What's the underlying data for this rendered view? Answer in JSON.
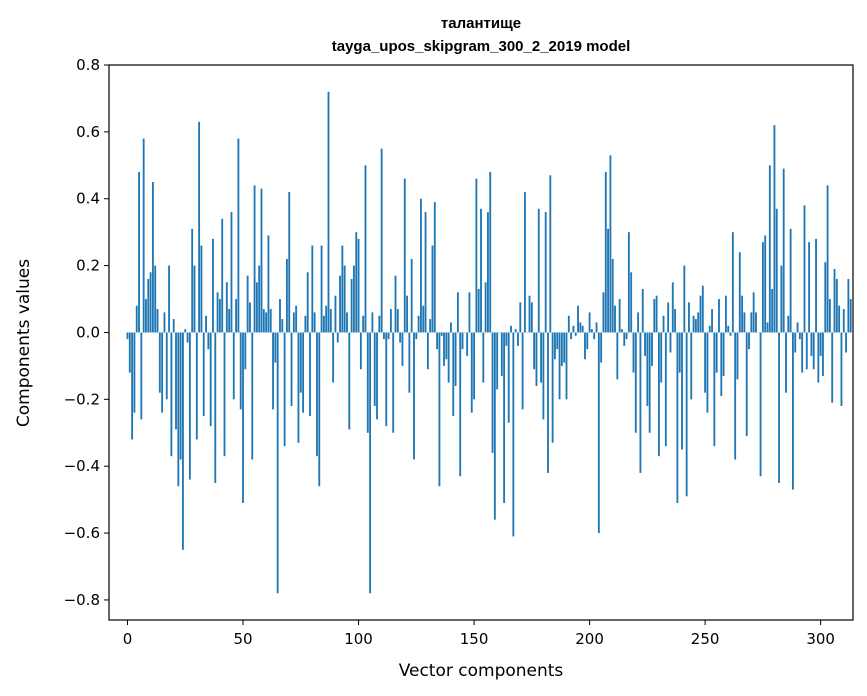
{
  "chart_data": {
    "type": "bar",
    "title": "талантище",
    "subtitle": "tayga_upos_skipgram_300_2_2019 model",
    "xlabel": "Vector components",
    "ylabel": "Components values",
    "xlim": [
      -8,
      314
    ],
    "ylim": [
      -0.86,
      0.8
    ],
    "xticks": [
      0,
      50,
      100,
      150,
      200,
      250,
      300
    ],
    "yticks": [
      -0.8,
      -0.6,
      -0.4,
      -0.2,
      0.0,
      0.2,
      0.4,
      0.6,
      0.8
    ],
    "ytick_labels": [
      "−0.8",
      "−0.6",
      "−0.4",
      "−0.2",
      "0.0",
      "0.2",
      "0.4",
      "0.6",
      "0.8"
    ],
    "bar_color": "#1f77b4",
    "grid": false,
    "values": [
      -0.02,
      -0.12,
      -0.32,
      -0.24,
      0.08,
      0.48,
      -0.26,
      0.58,
      0.1,
      0.16,
      0.18,
      0.45,
      0.2,
      0.07,
      -0.18,
      -0.24,
      0.06,
      -0.2,
      0.2,
      -0.37,
      0.04,
      -0.29,
      -0.46,
      -0.38,
      -0.65,
      0.01,
      -0.03,
      -0.44,
      0.31,
      0.2,
      -0.32,
      0.63,
      0.26,
      -0.25,
      0.05,
      -0.05,
      -0.28,
      0.28,
      -0.45,
      0.12,
      0.1,
      0.34,
      -0.37,
      0.15,
      0.07,
      0.36,
      -0.2,
      0.1,
      0.58,
      -0.23,
      -0.51,
      -0.11,
      0.17,
      0.09,
      -0.38,
      0.44,
      0.15,
      0.2,
      0.43,
      0.07,
      0.06,
      0.29,
      0.07,
      -0.23,
      -0.09,
      -0.78,
      0.1,
      0.04,
      -0.34,
      0.22,
      0.42,
      -0.22,
      0.06,
      0.08,
      -0.33,
      -0.18,
      -0.24,
      0.05,
      0.18,
      -0.25,
      0.26,
      0.06,
      -0.37,
      -0.46,
      0.26,
      0.05,
      0.08,
      0.72,
      0.07,
      -0.15,
      0.11,
      -0.03,
      0.17,
      0.26,
      0.2,
      0.06,
      -0.29,
      0.16,
      0.2,
      0.3,
      0.28,
      -0.11,
      0.05,
      0.5,
      -0.3,
      -0.78,
      0.06,
      -0.22,
      -0.26,
      0.05,
      0.55,
      -0.02,
      -0.28,
      -0.02,
      0.07,
      -0.3,
      0.17,
      0.07,
      -0.03,
      -0.1,
      0.46,
      0.11,
      -0.18,
      0.22,
      -0.38,
      -0.02,
      0.05,
      0.4,
      0.08,
      0.36,
      -0.11,
      0.04,
      0.26,
      0.39,
      -0.05,
      -0.46,
      -0.01,
      -0.1,
      -0.08,
      -0.15,
      0.03,
      -0.25,
      -0.16,
      0.12,
      -0.43,
      -0.05,
      0.0,
      -0.07,
      0.12,
      -0.24,
      -0.2,
      0.46,
      0.13,
      0.37,
      -0.15,
      0.15,
      0.36,
      0.48,
      -0.36,
      -0.56,
      -0.17,
      0.0,
      -0.13,
      -0.51,
      -0.04,
      -0.27,
      0.02,
      -0.61,
      0.01,
      -0.04,
      0.09,
      -0.23,
      0.42,
      0.0,
      0.11,
      0.09,
      -0.11,
      -0.16,
      0.37,
      -0.15,
      -0.26,
      0.36,
      -0.42,
      0.47,
      -0.33,
      -0.08,
      -0.05,
      -0.2,
      -0.1,
      -0.09,
      -0.2,
      0.05,
      -0.02,
      0.02,
      -0.01,
      0.08,
      0.03,
      0.02,
      -0.08,
      -0.05,
      0.06,
      0.01,
      -0.02,
      0.03,
      -0.6,
      -0.09,
      0.12,
      0.48,
      0.31,
      0.53,
      0.22,
      0.08,
      -0.14,
      0.1,
      0.01,
      -0.04,
      -0.02,
      0.3,
      0.18,
      -0.12,
      -0.3,
      0.06,
      -0.42,
      0.13,
      -0.07,
      -0.22,
      -0.3,
      -0.1,
      0.1,
      0.11,
      -0.37,
      -0.15,
      0.05,
      -0.34,
      0.09,
      -0.06,
      0.15,
      0.07,
      -0.51,
      -0.12,
      -0.35,
      0.2,
      -0.49,
      0.09,
      -0.2,
      0.05,
      0.04,
      0.06,
      0.11,
      0.14,
      -0.18,
      -0.24,
      0.02,
      0.07,
      -0.34,
      -0.12,
      0.1,
      -0.19,
      -0.13,
      0.11,
      0.02,
      -0.01,
      0.3,
      -0.38,
      -0.14,
      0.24,
      0.11,
      0.06,
      -0.31,
      -0.05,
      0.06,
      0.12,
      0.06,
      0.0,
      -0.43,
      0.27,
      0.29,
      0.03,
      0.5,
      0.13,
      0.62,
      0.37,
      -0.45,
      0.2,
      0.49,
      -0.18,
      0.05,
      0.31,
      -0.47,
      -0.06,
      0.03,
      -0.02,
      -0.12,
      0.38,
      -0.11,
      0.27,
      -0.07,
      -0.11,
      0.28,
      -0.15,
      -0.07,
      -0.13,
      0.21,
      0.44,
      0.1,
      -0.21,
      0.19,
      0.16,
      0.08,
      -0.22,
      0.07,
      -0.06,
      0.16,
      0.1
    ]
  }
}
